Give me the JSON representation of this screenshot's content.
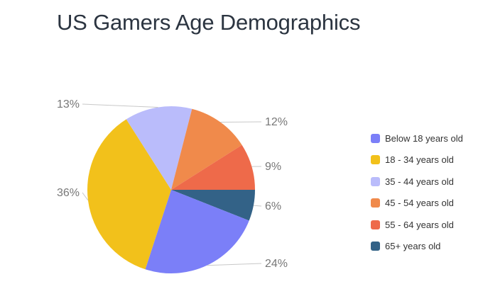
{
  "chart_data": {
    "type": "pie",
    "title": "US Gamers Age Demographics",
    "slices": [
      {
        "label": "Below 18 years old",
        "value": 24,
        "display": "24%",
        "color": "#7b7ff8"
      },
      {
        "label": "18 - 34 years old",
        "value": 36,
        "display": "36%",
        "color": "#f2c11b"
      },
      {
        "label": "35 - 44 years old",
        "value": 13,
        "display": "13%",
        "color": "#babcfb"
      },
      {
        "label": "45 - 54 years old",
        "value": 12,
        "display": "12%",
        "color": "#f08a4b"
      },
      {
        "label": "55 - 64 years old",
        "value": 9,
        "display": "9%",
        "color": "#ee6a4a"
      },
      {
        "label": "65+ years old",
        "value": 6,
        "display": "6%",
        "color": "#336287"
      }
    ],
    "legend_position": "right"
  }
}
